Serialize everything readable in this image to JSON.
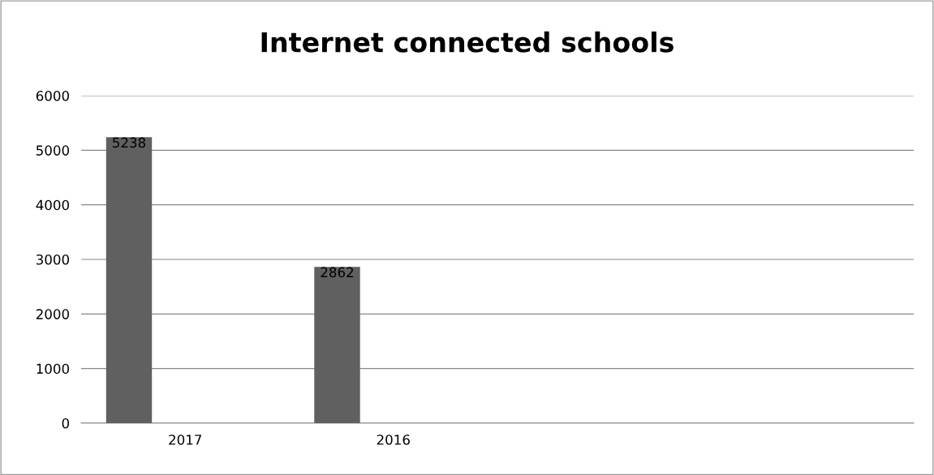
{
  "chart_data": {
    "type": "bar",
    "title": "Internet connected schools",
    "categories": [
      "2017",
      "2016",
      null,
      null
    ],
    "values": [
      5238,
      2862,
      null,
      null
    ],
    "color": "#606060",
    "ylim": [
      0,
      6000
    ],
    "yticks": [
      0,
      1000,
      2000,
      3000,
      4000,
      5000,
      6000
    ],
    "grid": "y",
    "data_labels": true
  }
}
